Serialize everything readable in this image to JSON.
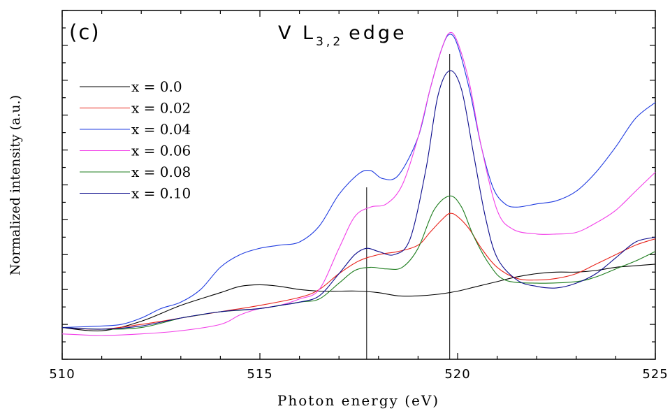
{
  "chart_data": {
    "type": "line",
    "panel_label": "(c)",
    "title": "V L",
    "title_subscript": "3,2",
    "title_suffix": "edge",
    "xlabel": "Photon energy (eV)",
    "ylabel": "Normalized intensity (a.u.)",
    "xlim": [
      510,
      525
    ],
    "ylim": [
      -0.05,
      1.05
    ],
    "x_ticks": [
      510,
      515,
      520,
      525
    ],
    "x_tick_labels": [
      "510",
      "515",
      "520",
      "525"
    ],
    "y_tick_labels_shown": false,
    "grid": false,
    "legend_position": "top-left",
    "vertical_markers": [
      517.7,
      519.8
    ],
    "series": [
      {
        "name": "x = 0.0",
        "color": "#000000",
        "points": [
          [
            510,
            0.05
          ],
          [
            511,
            0.04
          ],
          [
            512,
            0.07
          ],
          [
            513,
            0.12
          ],
          [
            514,
            0.16
          ],
          [
            514.5,
            0.18
          ],
          [
            515,
            0.185
          ],
          [
            515.5,
            0.18
          ],
          [
            516,
            0.17
          ],
          [
            516.5,
            0.165
          ],
          [
            517,
            0.165
          ],
          [
            517.5,
            0.165
          ],
          [
            518,
            0.16
          ],
          [
            518.5,
            0.15
          ],
          [
            519,
            0.15
          ],
          [
            519.5,
            0.155
          ],
          [
            520,
            0.165
          ],
          [
            520.5,
            0.18
          ],
          [
            521,
            0.195
          ],
          [
            521.5,
            0.21
          ],
          [
            522,
            0.22
          ],
          [
            522.5,
            0.225
          ],
          [
            523,
            0.225
          ],
          [
            523.5,
            0.23
          ],
          [
            524,
            0.24
          ],
          [
            524.5,
            0.245
          ],
          [
            525,
            0.25
          ]
        ]
      },
      {
        "name": "x = 0.02",
        "color": "#e8221a",
        "points": [
          [
            510,
            0.05
          ],
          [
            511,
            0.045
          ],
          [
            512,
            0.06
          ],
          [
            513,
            0.08
          ],
          [
            514,
            0.1
          ],
          [
            515,
            0.12
          ],
          [
            516,
            0.145
          ],
          [
            516.5,
            0.17
          ],
          [
            517,
            0.22
          ],
          [
            517.5,
            0.26
          ],
          [
            518,
            0.28
          ],
          [
            518.5,
            0.29
          ],
          [
            519,
            0.31
          ],
          [
            519.3,
            0.35
          ],
          [
            519.6,
            0.39
          ],
          [
            519.8,
            0.41
          ],
          [
            520,
            0.4
          ],
          [
            520.3,
            0.36
          ],
          [
            520.6,
            0.3
          ],
          [
            521,
            0.24
          ],
          [
            521.5,
            0.205
          ],
          [
            522,
            0.2
          ],
          [
            522.5,
            0.205
          ],
          [
            523,
            0.22
          ],
          [
            523.5,
            0.25
          ],
          [
            524,
            0.28
          ],
          [
            524.5,
            0.31
          ],
          [
            525,
            0.33
          ]
        ]
      },
      {
        "name": "x = 0.04",
        "color": "#1f3be0",
        "points": [
          [
            510,
            0.05
          ],
          [
            511,
            0.055
          ],
          [
            511.5,
            0.06
          ],
          [
            512,
            0.08
          ],
          [
            512.5,
            0.11
          ],
          [
            513,
            0.13
          ],
          [
            513.5,
            0.17
          ],
          [
            514,
            0.24
          ],
          [
            514.5,
            0.28
          ],
          [
            515,
            0.3
          ],
          [
            515.5,
            0.31
          ],
          [
            516,
            0.32
          ],
          [
            516.5,
            0.37
          ],
          [
            517,
            0.47
          ],
          [
            517.5,
            0.535
          ],
          [
            517.8,
            0.545
          ],
          [
            518.1,
            0.52
          ],
          [
            518.5,
            0.53
          ],
          [
            519,
            0.65
          ],
          [
            519.3,
            0.8
          ],
          [
            519.6,
            0.93
          ],
          [
            519.8,
            0.975
          ],
          [
            520,
            0.94
          ],
          [
            520.3,
            0.8
          ],
          [
            520.6,
            0.62
          ],
          [
            520.9,
            0.49
          ],
          [
            521.2,
            0.44
          ],
          [
            521.5,
            0.43
          ],
          [
            522,
            0.44
          ],
          [
            522.5,
            0.45
          ],
          [
            523,
            0.48
          ],
          [
            523.5,
            0.54
          ],
          [
            524,
            0.62
          ],
          [
            524.5,
            0.71
          ],
          [
            525,
            0.76
          ]
        ]
      },
      {
        "name": "x = 0.06",
        "color": "#f23ee8",
        "points": [
          [
            510,
            0.03
          ],
          [
            511,
            0.025
          ],
          [
            512,
            0.03
          ],
          [
            513,
            0.04
          ],
          [
            514,
            0.06
          ],
          [
            514.5,
            0.09
          ],
          [
            515,
            0.11
          ],
          [
            515.5,
            0.12
          ],
          [
            516,
            0.14
          ],
          [
            516.5,
            0.17
          ],
          [
            517,
            0.3
          ],
          [
            517.4,
            0.4
          ],
          [
            517.8,
            0.43
          ],
          [
            518.2,
            0.44
          ],
          [
            518.6,
            0.5
          ],
          [
            519,
            0.65
          ],
          [
            519.3,
            0.8
          ],
          [
            519.6,
            0.93
          ],
          [
            519.8,
            0.98
          ],
          [
            520,
            0.95
          ],
          [
            520.3,
            0.82
          ],
          [
            520.6,
            0.62
          ],
          [
            521,
            0.42
          ],
          [
            521.4,
            0.36
          ],
          [
            522,
            0.345
          ],
          [
            522.5,
            0.345
          ],
          [
            523,
            0.35
          ],
          [
            523.5,
            0.38
          ],
          [
            524,
            0.42
          ],
          [
            524.5,
            0.48
          ],
          [
            525,
            0.54
          ]
        ]
      },
      {
        "name": "x = 0.08",
        "color": "#1e7d1e",
        "points": [
          [
            510,
            0.05
          ],
          [
            511,
            0.045
          ],
          [
            512,
            0.05
          ],
          [
            513,
            0.08
          ],
          [
            513.5,
            0.09
          ],
          [
            514,
            0.1
          ],
          [
            515,
            0.11
          ],
          [
            516,
            0.13
          ],
          [
            516.5,
            0.14
          ],
          [
            517,
            0.19
          ],
          [
            517.4,
            0.23
          ],
          [
            517.8,
            0.24
          ],
          [
            518.2,
            0.235
          ],
          [
            518.6,
            0.24
          ],
          [
            519,
            0.3
          ],
          [
            519.4,
            0.42
          ],
          [
            519.8,
            0.465
          ],
          [
            520.1,
            0.43
          ],
          [
            520.4,
            0.34
          ],
          [
            520.8,
            0.25
          ],
          [
            521.2,
            0.2
          ],
          [
            522,
            0.19
          ],
          [
            523,
            0.195
          ],
          [
            523.5,
            0.21
          ],
          [
            524,
            0.235
          ],
          [
            524.5,
            0.26
          ],
          [
            525,
            0.29
          ]
        ]
      },
      {
        "name": "x = 0.10",
        "color": "#0b0b8c",
        "points": [
          [
            510,
            0.05
          ],
          [
            511,
            0.045
          ],
          [
            512,
            0.055
          ],
          [
            513,
            0.08
          ],
          [
            514,
            0.1
          ],
          [
            515,
            0.11
          ],
          [
            515.5,
            0.12
          ],
          [
            516,
            0.13
          ],
          [
            516.5,
            0.15
          ],
          [
            517,
            0.22
          ],
          [
            517.4,
            0.28
          ],
          [
            517.7,
            0.3
          ],
          [
            518,
            0.29
          ],
          [
            518.4,
            0.28
          ],
          [
            518.8,
            0.33
          ],
          [
            519.2,
            0.55
          ],
          [
            519.5,
            0.78
          ],
          [
            519.8,
            0.86
          ],
          [
            520.1,
            0.8
          ],
          [
            520.4,
            0.6
          ],
          [
            520.7,
            0.4
          ],
          [
            521,
            0.27
          ],
          [
            521.5,
            0.2
          ],
          [
            522,
            0.18
          ],
          [
            522.5,
            0.175
          ],
          [
            523,
            0.19
          ],
          [
            523.5,
            0.22
          ],
          [
            524,
            0.27
          ],
          [
            524.5,
            0.32
          ],
          [
            525,
            0.335
          ]
        ]
      }
    ]
  }
}
